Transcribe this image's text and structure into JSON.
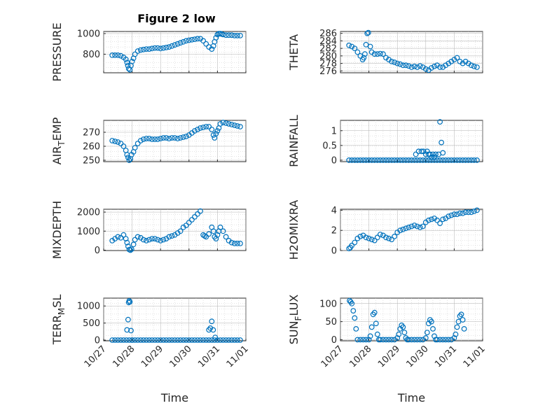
{
  "figure_title": "Figure 2 low",
  "colors": {
    "marker": "#0072BD",
    "axes": "#262626",
    "grid": "#b0b0b0"
  },
  "chart_data": [
    {
      "type": "scatter",
      "title": "Figure 2 low",
      "xlabel": "",
      "ylabel": "PRESSURE",
      "ylim": [
        620,
        1020
      ],
      "yticks": [
        800,
        1000
      ],
      "xlim": [
        0,
        5
      ],
      "grid": true,
      "marker": "circle",
      "x": [
        0.3,
        0.4,
        0.5,
        0.6,
        0.7,
        0.78,
        0.82,
        0.85,
        0.88,
        0.92,
        0.96,
        1.0,
        1.05,
        1.1,
        1.2,
        1.3,
        1.4,
        1.5,
        1.6,
        1.7,
        1.8,
        1.9,
        2.0,
        2.1,
        2.2,
        2.3,
        2.4,
        2.5,
        2.6,
        2.7,
        2.8,
        2.9,
        3.0,
        3.1,
        3.2,
        3.3,
        3.4,
        3.5,
        3.6,
        3.7,
        3.8,
        3.86,
        3.9,
        3.95,
        4.0,
        4.05,
        4.1,
        4.15,
        4.2,
        4.3,
        4.4,
        4.5,
        4.6,
        4.7,
        4.8
      ],
      "y": [
        790,
        790,
        790,
        785,
        770,
        750,
        720,
        690,
        660,
        650,
        690,
        730,
        760,
        800,
        830,
        840,
        845,
        850,
        850,
        855,
        860,
        860,
        855,
        860,
        865,
        870,
        880,
        890,
        900,
        910,
        920,
        930,
        935,
        940,
        945,
        950,
        950,
        930,
        900,
        870,
        850,
        880,
        920,
        960,
        990,
        1000,
        1000,
        995,
        990,
        985,
        985,
        985,
        980,
        980,
        980
      ]
    },
    {
      "type": "scatter",
      "title": "",
      "xlabel": "",
      "ylabel": "THETA",
      "ylim": [
        275.5,
        286.5
      ],
      "yticks": [
        276,
        278,
        280,
        282,
        284,
        286
      ],
      "xlim": [
        0,
        5
      ],
      "grid": true,
      "marker": "circle",
      "x": [
        0.3,
        0.4,
        0.5,
        0.6,
        0.7,
        0.78,
        0.82,
        0.86,
        0.9,
        0.94,
        0.98,
        1.05,
        1.1,
        1.2,
        1.3,
        1.4,
        1.5,
        1.6,
        1.7,
        1.8,
        1.9,
        2.0,
        2.1,
        2.2,
        2.3,
        2.4,
        2.5,
        2.6,
        2.7,
        2.8,
        2.9,
        3.0,
        3.1,
        3.2,
        3.3,
        3.4,
        3.5,
        3.6,
        3.7,
        3.8,
        3.9,
        4.0,
        4.1,
        4.2,
        4.3,
        4.4,
        4.5,
        4.6,
        4.7,
        4.8
      ],
      "y": [
        282.8,
        282.5,
        282.0,
        281.0,
        280.0,
        279.0,
        279.5,
        280.5,
        283.0,
        286.0,
        286.2,
        282.5,
        281.0,
        280.5,
        280.5,
        280.6,
        280.5,
        279.5,
        279.0,
        278.5,
        278.3,
        278.0,
        277.8,
        277.5,
        277.5,
        277.3,
        277.0,
        277.2,
        277.0,
        277.3,
        277.0,
        276.5,
        276.2,
        276.8,
        277.2,
        277.5,
        277.0,
        277.0,
        277.5,
        278.0,
        278.5,
        279.0,
        279.5,
        278.5,
        278.0,
        278.5,
        278.0,
        277.5,
        277.2,
        277.0
      ]
    },
    {
      "type": "scatter",
      "title": "",
      "xlabel": "",
      "ylabel": "AIR_TEMP",
      "ylim": [
        249,
        278.5
      ],
      "yticks": [
        250,
        260,
        270
      ],
      "xlim": [
        0,
        5
      ],
      "grid": true,
      "marker": "circle",
      "x": [
        0.3,
        0.4,
        0.5,
        0.6,
        0.7,
        0.78,
        0.82,
        0.86,
        0.9,
        0.94,
        0.98,
        1.05,
        1.1,
        1.2,
        1.3,
        1.4,
        1.5,
        1.6,
        1.7,
        1.8,
        1.9,
        2.0,
        2.1,
        2.2,
        2.3,
        2.4,
        2.5,
        2.6,
        2.7,
        2.8,
        2.9,
        3.0,
        3.1,
        3.2,
        3.3,
        3.4,
        3.5,
        3.6,
        3.7,
        3.8,
        3.86,
        3.9,
        3.95,
        4.0,
        4.05,
        4.1,
        4.2,
        4.3,
        4.4,
        4.5,
        4.6,
        4.7,
        4.8
      ],
      "y": [
        264,
        263.5,
        263,
        262,
        260,
        257,
        254,
        252,
        250,
        251,
        254,
        256,
        259,
        262,
        264,
        265,
        265.5,
        265.5,
        265,
        265,
        265,
        265.5,
        266,
        266,
        265.5,
        266,
        266,
        265.5,
        266,
        266.5,
        267,
        268,
        269.5,
        271,
        272,
        273,
        273.5,
        274,
        274,
        272,
        268,
        266,
        269,
        271,
        273,
        276,
        277,
        276.5,
        276,
        275.5,
        275,
        274.5,
        274
      ]
    },
    {
      "type": "scatter",
      "title": "",
      "xlabel": "",
      "ylabel": "RAINFALL",
      "ylim": [
        -0.05,
        1.35
      ],
      "yticks": [
        0,
        0.5,
        1
      ],
      "xlim": [
        0,
        5
      ],
      "grid": true,
      "marker": "circle",
      "x": [
        0.3,
        0.4,
        0.5,
        0.6,
        0.7,
        0.8,
        0.9,
        1.0,
        1.1,
        1.2,
        1.3,
        1.4,
        1.5,
        1.6,
        1.7,
        1.8,
        1.9,
        2.0,
        2.1,
        2.2,
        2.3,
        2.4,
        2.5,
        2.6,
        2.7,
        2.8,
        2.9,
        3.0,
        3.1,
        3.2,
        3.3,
        3.4,
        3.5,
        3.6,
        3.7,
        3.8,
        3.9,
        4.0,
        4.1,
        4.2,
        4.3,
        4.4,
        4.5,
        4.6,
        4.7,
        4.8,
        2.65,
        2.75,
        2.85,
        2.92,
        3.0,
        3.05,
        3.1,
        3.15,
        3.2,
        3.25,
        3.3,
        3.35,
        3.45,
        3.5,
        3.55,
        3.6
      ],
      "y": [
        0,
        0,
        0,
        0,
        0,
        0,
        0,
        0,
        0,
        0,
        0,
        0,
        0,
        0,
        0,
        0,
        0,
        0,
        0,
        0,
        0,
        0,
        0,
        0,
        0,
        0,
        0,
        0,
        0,
        0,
        0,
        0,
        0,
        0,
        0,
        0,
        0,
        0,
        0,
        0,
        0,
        0,
        0,
        0,
        0,
        0,
        0.2,
        0.3,
        0.3,
        0.3,
        0.2,
        0.3,
        0.2,
        0.2,
        0.1,
        0.2,
        0.1,
        0.2,
        0.2,
        1.3,
        0.6,
        0.25
      ]
    },
    {
      "type": "scatter",
      "title": "",
      "xlabel": "",
      "ylabel": "MIXDEPTH",
      "ylim": [
        -20,
        2150
      ],
      "yticks": [
        0,
        1000,
        2000
      ],
      "xlim": [
        0,
        5
      ],
      "grid": true,
      "marker": "circle",
      "x": [
        0.3,
        0.4,
        0.5,
        0.6,
        0.7,
        0.78,
        0.82,
        0.86,
        0.9,
        0.94,
        0.98,
        1.05,
        1.1,
        1.2,
        1.3,
        1.4,
        1.5,
        1.6,
        1.7,
        1.8,
        1.9,
        2.0,
        2.1,
        2.2,
        2.3,
        2.4,
        2.5,
        2.6,
        2.7,
        2.8,
        2.9,
        3.0,
        3.1,
        3.2,
        3.3,
        3.4,
        3.5,
        3.55,
        3.6,
        3.7,
        3.8,
        3.86,
        3.9,
        3.95,
        4.0,
        4.05,
        4.1,
        4.2,
        4.3,
        4.4,
        4.5,
        4.6,
        4.7,
        4.8
      ],
      "y": [
        500,
        600,
        700,
        650,
        800,
        600,
        400,
        200,
        30,
        0,
        50,
        300,
        550,
        700,
        650,
        550,
        500,
        550,
        600,
        600,
        550,
        500,
        550,
        600,
        700,
        750,
        800,
        900,
        1000,
        1200,
        1300,
        1450,
        1600,
        1750,
        1900,
        2050,
        800,
        750,
        700,
        850,
        1200,
        1000,
        700,
        600,
        800,
        1000,
        1200,
        1000,
        700,
        500,
        400,
        350,
        350,
        350
      ]
    },
    {
      "type": "scatter",
      "title": "",
      "xlabel": "",
      "ylabel": "H2OMIXRA",
      "ylim": [
        0,
        4.1
      ],
      "yticks": [
        0,
        2,
        4
      ],
      "xlim": [
        0,
        5
      ],
      "grid": true,
      "marker": "circle",
      "x": [
        0.3,
        0.35,
        0.4,
        0.5,
        0.6,
        0.7,
        0.8,
        0.9,
        1.0,
        1.1,
        1.2,
        1.3,
        1.4,
        1.5,
        1.6,
        1.7,
        1.8,
        1.9,
        2.0,
        2.1,
        2.2,
        2.3,
        2.4,
        2.5,
        2.6,
        2.7,
        2.8,
        2.9,
        3.0,
        3.1,
        3.2,
        3.3,
        3.4,
        3.5,
        3.6,
        3.7,
        3.8,
        3.9,
        4.0,
        4.1,
        4.2,
        4.3,
        4.4,
        4.5,
        4.6,
        4.7,
        4.8
      ],
      "y": [
        0.2,
        0.3,
        0.5,
        0.8,
        1.2,
        1.4,
        1.5,
        1.3,
        1.2,
        1.1,
        1.0,
        1.3,
        1.6,
        1.5,
        1.3,
        1.2,
        1.1,
        1.4,
        1.8,
        2.0,
        2.1,
        2.2,
        2.3,
        2.4,
        2.5,
        2.4,
        2.3,
        2.4,
        2.8,
        3.0,
        3.1,
        3.2,
        3.0,
        2.7,
        3.1,
        3.2,
        3.4,
        3.5,
        3.6,
        3.6,
        3.7,
        3.7,
        3.8,
        3.8,
        3.8,
        3.9,
        4.0
      ]
    },
    {
      "type": "scatter",
      "title": "",
      "xlabel": "Time",
      "ylabel": "TERR_MSL",
      "ylim": [
        -20,
        1230
      ],
      "yticks": [
        0,
        500,
        1000
      ],
      "xlim": [
        0,
        5
      ],
      "xtick_labels": [
        "10/27",
        "10/28",
        "10/29",
        "10/30",
        "10/31",
        "11/01"
      ],
      "grid": true,
      "marker": "circle",
      "x": [
        0.3,
        0.4,
        0.5,
        0.6,
        0.7,
        0.8,
        0.9,
        1.0,
        1.1,
        1.2,
        1.3,
        1.4,
        1.5,
        1.6,
        1.7,
        1.8,
        1.9,
        2.0,
        2.1,
        2.2,
        2.3,
        2.4,
        2.5,
        2.6,
        2.7,
        2.8,
        2.9,
        3.0,
        3.1,
        3.2,
        3.3,
        3.4,
        3.5,
        3.6,
        3.7,
        3.8,
        3.9,
        4.0,
        4.1,
        4.2,
        4.3,
        4.4,
        4.5,
        4.6,
        4.7,
        4.8,
        0.82,
        0.86,
        0.88,
        0.9,
        0.92,
        0.96,
        1.0,
        3.7,
        3.75,
        3.8,
        3.85,
        3.92
      ],
      "y": [
        0,
        0,
        0,
        0,
        0,
        0,
        0,
        0,
        0,
        0,
        0,
        0,
        0,
        0,
        0,
        0,
        0,
        0,
        0,
        0,
        0,
        0,
        0,
        0,
        0,
        0,
        0,
        0,
        0,
        0,
        0,
        0,
        0,
        0,
        0,
        0,
        0,
        0,
        0,
        0,
        0,
        0,
        0,
        0,
        0,
        0,
        300,
        600,
        1100,
        1150,
        1120,
        280,
        0,
        300,
        350,
        550,
        300,
        80
      ]
    },
    {
      "type": "scatter",
      "title": "",
      "xlabel": "Time",
      "ylabel": "SUN_FLUX",
      "ylim": [
        -3,
        115
      ],
      "yticks": [
        0,
        50,
        100
      ],
      "xlim": [
        0,
        5
      ],
      "xtick_labels": [
        "10/27",
        "10/28",
        "10/29",
        "10/30",
        "10/31",
        "11/01"
      ],
      "grid": true,
      "marker": "circle",
      "x": [
        0.32,
        0.36,
        0.4,
        0.45,
        0.5,
        0.55,
        0.6,
        0.7,
        0.8,
        0.9,
        1.0,
        1.05,
        1.1,
        1.15,
        1.2,
        1.25,
        1.3,
        1.35,
        1.4,
        1.5,
        1.6,
        1.7,
        1.8,
        1.9,
        2.0,
        2.05,
        2.1,
        2.15,
        2.2,
        2.25,
        2.3,
        2.35,
        2.4,
        2.5,
        2.6,
        2.7,
        2.8,
        2.9,
        3.0,
        3.05,
        3.1,
        3.15,
        3.2,
        3.25,
        3.3,
        3.35,
        3.4,
        3.5,
        3.6,
        3.7,
        3.8,
        3.9,
        4.0,
        4.05,
        4.1,
        4.15,
        4.2,
        4.25,
        4.3,
        4.35
      ],
      "y": [
        108,
        105,
        100,
        80,
        60,
        30,
        0,
        0,
        0,
        0,
        0,
        10,
        35,
        70,
        75,
        45,
        15,
        0,
        0,
        0,
        0,
        0,
        0,
        0,
        5,
        15,
        30,
        40,
        35,
        20,
        5,
        0,
        0,
        0,
        0,
        0,
        0,
        0,
        5,
        20,
        45,
        55,
        50,
        30,
        10,
        0,
        0,
        0,
        0,
        0,
        0,
        0,
        5,
        15,
        35,
        50,
        65,
        70,
        55,
        30
      ]
    }
  ]
}
